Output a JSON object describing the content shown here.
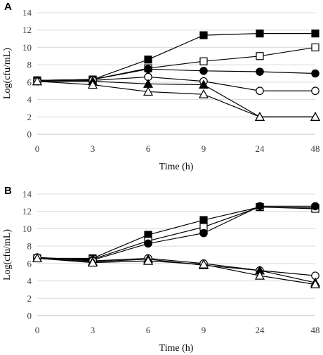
{
  "chart_data": [
    {
      "panel": "A",
      "type": "line",
      "categories": [
        "0",
        "3",
        "6",
        "9",
        "24",
        "48"
      ],
      "xlabel": "Time (h)",
      "ylabel": "Log(cfu/mL)",
      "ylim": [
        0,
        14
      ],
      "yticks": [
        "0",
        "2",
        "4",
        "6",
        "8",
        "10",
        "12",
        "14"
      ],
      "grid": "horizontal",
      "series": [
        {
          "marker": "filled-square",
          "values": [
            6.2,
            6.3,
            8.6,
            11.4,
            11.6,
            11.6
          ]
        },
        {
          "marker": "open-square",
          "values": [
            6.2,
            6.3,
            7.6,
            8.4,
            9.0,
            10.0
          ]
        },
        {
          "marker": "filled-circle",
          "values": [
            6.2,
            6.3,
            7.5,
            7.3,
            7.2,
            7.0
          ]
        },
        {
          "marker": "open-circle",
          "values": [
            6.1,
            6.2,
            6.6,
            6.1,
            5.0,
            5.0
          ]
        },
        {
          "marker": "filled-triangle",
          "values": [
            6.1,
            6.1,
            5.8,
            5.7,
            2.0,
            2.0
          ]
        },
        {
          "marker": "open-triangle",
          "values": [
            6.1,
            5.7,
            4.9,
            4.6,
            2.0,
            2.0
          ]
        }
      ]
    },
    {
      "panel": "B",
      "type": "line",
      "categories": [
        "0",
        "3",
        "6",
        "9",
        "24",
        "48"
      ],
      "xlabel": "Time (h)",
      "ylabel": "Log(cfu/mL)",
      "ylim": [
        0,
        14
      ],
      "yticks": [
        "0",
        "2",
        "4",
        "6",
        "8",
        "10",
        "12",
        "14"
      ],
      "grid": "horizontal",
      "series": [
        {
          "marker": "filled-square",
          "values": [
            6.6,
            6.6,
            9.3,
            11.0,
            12.5,
            12.4
          ]
        },
        {
          "marker": "open-square",
          "values": [
            6.6,
            6.5,
            8.6,
            10.2,
            12.5,
            12.3
          ]
        },
        {
          "marker": "filled-circle",
          "values": [
            6.7,
            6.4,
            8.3,
            9.5,
            12.6,
            12.6
          ]
        },
        {
          "marker": "open-circle",
          "values": [
            6.7,
            6.3,
            6.6,
            6.0,
            5.2,
            4.6
          ]
        },
        {
          "marker": "filled-triangle",
          "values": [
            6.6,
            6.2,
            6.5,
            5.8,
            5.2,
            3.8
          ]
        },
        {
          "marker": "open-triangle",
          "values": [
            6.6,
            6.1,
            6.3,
            5.9,
            4.6,
            3.6
          ]
        }
      ]
    }
  ]
}
